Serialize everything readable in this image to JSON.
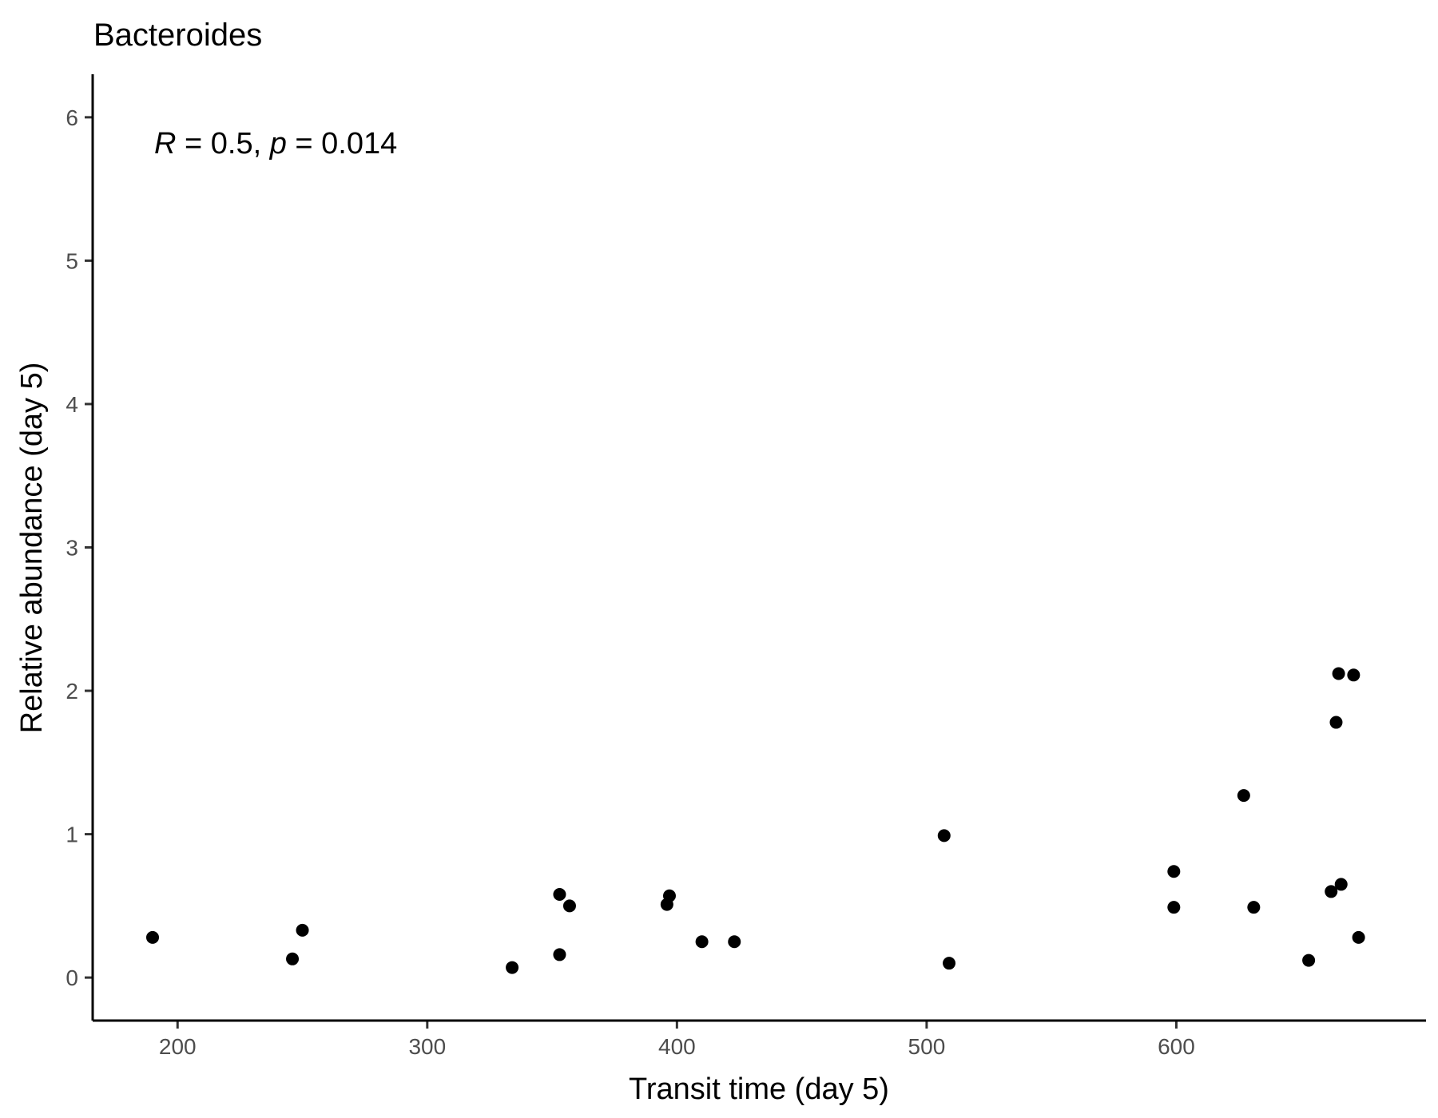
{
  "chart_data": {
    "type": "scatter",
    "title": "Bacteroides",
    "xlabel": "Transit time (day 5)",
    "ylabel": "Relative abundance (day 5)",
    "xlim": [
      166,
      700
    ],
    "ylim": [
      -0.3,
      6.3
    ],
    "xticks": [
      200,
      300,
      400,
      500,
      600
    ],
    "yticks": [
      0,
      1,
      2,
      3,
      4,
      5,
      6
    ],
    "grid": false,
    "point_color": "#000000",
    "annotation": {
      "r_symbol": "R",
      "r_text": " = 0.5, ",
      "p_symbol": "p",
      "p_text": " = 0.014"
    },
    "points": [
      {
        "x": 190,
        "y": 0.28
      },
      {
        "x": 246,
        "y": 0.13
      },
      {
        "x": 250,
        "y": 0.33
      },
      {
        "x": 334,
        "y": 0.07
      },
      {
        "x": 353,
        "y": 0.58
      },
      {
        "x": 353,
        "y": 0.16
      },
      {
        "x": 357,
        "y": 0.5
      },
      {
        "x": 396,
        "y": 0.51
      },
      {
        "x": 397,
        "y": 0.57
      },
      {
        "x": 410,
        "y": 0.25
      },
      {
        "x": 423,
        "y": 0.25
      },
      {
        "x": 507,
        "y": 0.99
      },
      {
        "x": 509,
        "y": 0.1
      },
      {
        "x": 599,
        "y": 0.74
      },
      {
        "x": 599,
        "y": 0.49
      },
      {
        "x": 627,
        "y": 1.27
      },
      {
        "x": 631,
        "y": 0.49
      },
      {
        "x": 653,
        "y": 0.12
      },
      {
        "x": 662,
        "y": 0.6
      },
      {
        "x": 664,
        "y": 1.78
      },
      {
        "x": 665,
        "y": 2.12
      },
      {
        "x": 666,
        "y": 0.65
      },
      {
        "x": 671,
        "y": 2.11
      },
      {
        "x": 673,
        "y": 0.28
      }
    ]
  }
}
